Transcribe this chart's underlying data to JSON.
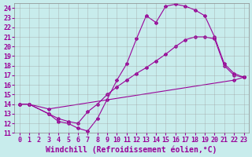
{
  "xlabel": "Windchill (Refroidissement éolien,°C)",
  "bg_color": "#c8ecec",
  "line_color": "#990099",
  "xlim": [
    -0.5,
    23.5
  ],
  "ylim": [
    11,
    24.5
  ],
  "xticks": [
    0,
    1,
    2,
    3,
    4,
    5,
    6,
    7,
    8,
    9,
    10,
    11,
    12,
    13,
    14,
    15,
    16,
    17,
    18,
    19,
    20,
    21,
    22,
    23
  ],
  "yticks": [
    11,
    12,
    13,
    14,
    15,
    16,
    17,
    18,
    19,
    20,
    21,
    22,
    23,
    24
  ],
  "curve1_x": [
    0,
    1,
    3,
    4,
    5,
    6,
    7,
    8,
    9,
    10,
    11,
    12,
    13,
    14,
    15,
    16,
    17,
    18,
    19,
    20,
    21,
    22,
    23
  ],
  "curve1_y": [
    14,
    14,
    13,
    12.2,
    12.0,
    11.5,
    11.2,
    12.5,
    14.5,
    16.5,
    18.2,
    20.8,
    23.2,
    22.5,
    24.2,
    24.4,
    24.2,
    23.8,
    23.2,
    21.0,
    18.2,
    17.2,
    16.8
  ],
  "curve2_x": [
    0,
    1,
    3,
    4,
    5,
    6,
    7,
    8,
    9,
    10,
    11,
    12,
    13,
    14,
    15,
    16,
    17,
    18,
    19,
    20,
    21,
    22,
    23
  ],
  "curve2_y": [
    14,
    14,
    13,
    12.5,
    12.2,
    12.0,
    13.2,
    14.0,
    15.0,
    15.8,
    16.5,
    17.2,
    17.8,
    18.5,
    19.2,
    20.0,
    20.7,
    21.0,
    21.0,
    20.8,
    18.0,
    17.0,
    16.8
  ],
  "curve3_x": [
    0,
    1,
    3,
    22,
    23
  ],
  "curve3_y": [
    14.0,
    14.0,
    13.5,
    16.5,
    16.8
  ],
  "grid_color": "#999999",
  "font_size_xlabel": 7,
  "font_size_ticks": 6
}
